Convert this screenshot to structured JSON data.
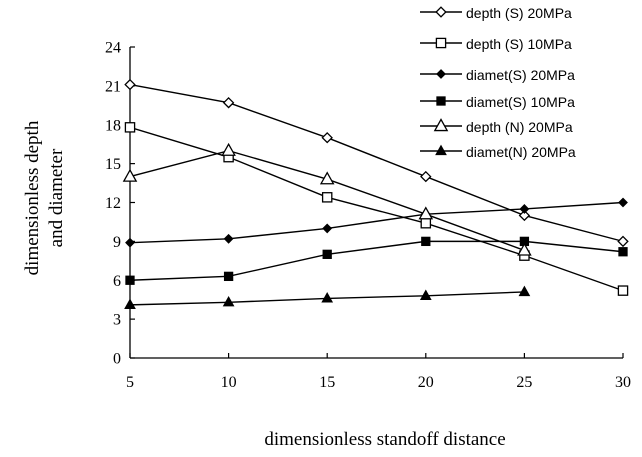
{
  "chart_data": {
    "type": "line",
    "title": "",
    "xlabel": "dimensionless standoff distance",
    "ylabel_lines": [
      "dimensionless depth",
      "and diameter"
    ],
    "xlim": [
      5,
      30
    ],
    "ylim": [
      0,
      24
    ],
    "x_ticks": [
      5,
      10,
      15,
      20,
      25,
      30
    ],
    "y_ticks": [
      0,
      3,
      6,
      9,
      12,
      15,
      18,
      21,
      24
    ],
    "grid": false,
    "legend_position": "top-right",
    "series": [
      {
        "name": "depth (S) 20MPa",
        "marker": "diamond-open",
        "x": [
          5,
          10,
          15,
          20,
          25,
          30
        ],
        "y": [
          21.1,
          19.7,
          17.0,
          14.0,
          11.0,
          9.0
        ]
      },
      {
        "name": "depth (S) 10MPa",
        "marker": "square-open",
        "x": [
          5,
          10,
          15,
          20,
          25,
          30
        ],
        "y": [
          17.8,
          15.5,
          12.4,
          10.4,
          7.9,
          5.2
        ]
      },
      {
        "name": "diamet(S) 20MPa",
        "marker": "diamond-filled",
        "x": [
          5,
          10,
          15,
          20,
          25,
          30
        ],
        "y": [
          8.9,
          9.2,
          10.0,
          11.1,
          11.5,
          12.0
        ]
      },
      {
        "name": "diamet(S) 10MPa",
        "marker": "square-filled",
        "x": [
          5,
          10,
          15,
          20,
          25,
          30
        ],
        "y": [
          6.0,
          6.3,
          8.0,
          9.0,
          9.0,
          8.2
        ]
      },
      {
        "name": "depth (N) 20MPa",
        "marker": "triangle-open",
        "x": [
          5,
          10,
          15,
          20,
          25
        ],
        "y": [
          14.0,
          16.0,
          13.8,
          11.1,
          8.3
        ]
      },
      {
        "name": "diamet(N) 20MPa",
        "marker": "triangle-filled",
        "x": [
          5,
          10,
          15,
          20,
          25
        ],
        "y": [
          4.1,
          4.3,
          4.6,
          4.8,
          5.1
        ]
      }
    ]
  }
}
